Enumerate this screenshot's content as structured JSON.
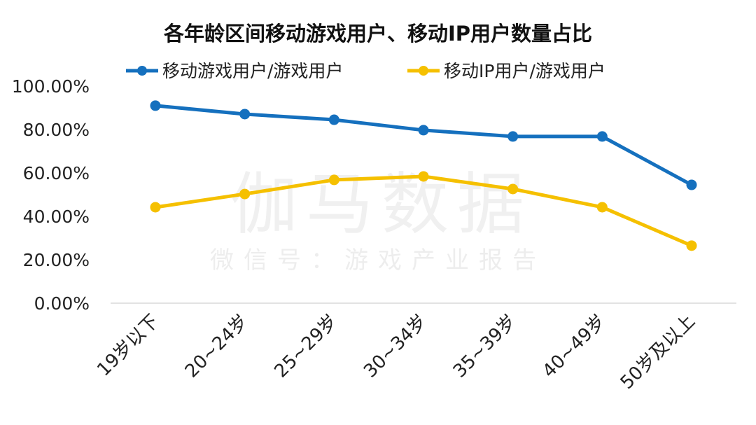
{
  "chart_data": {
    "type": "line",
    "title": "各年龄区间移动游戏用户、移动IP用户数量占比",
    "xlabel": "",
    "ylabel": "",
    "categories": [
      "19岁以下",
      "20~24岁",
      "25~29岁",
      "30~34岁",
      "35~39岁",
      "40~49岁",
      "50岁及以上"
    ],
    "series": [
      {
        "name": "移动游戏用户/游戏用户",
        "color": "#1570BE",
        "values": [
          91.0,
          87.1,
          84.5,
          79.7,
          76.8,
          76.8,
          54.5
        ]
      },
      {
        "name": "移动IP用户/游戏用户",
        "color": "#F5C000",
        "values": [
          44.2,
          50.3,
          56.8,
          58.4,
          52.6,
          44.2,
          26.5
        ]
      }
    ],
    "ylim": [
      0,
      100
    ],
    "yticks": [
      "0.00%",
      "20.00%",
      "40.00%",
      "60.00%",
      "80.00%",
      "100.00%"
    ],
    "grid": false,
    "legend_position": "top"
  },
  "watermark": {
    "main": "伽马数据",
    "sub": "微信号：游戏产业报告"
  }
}
